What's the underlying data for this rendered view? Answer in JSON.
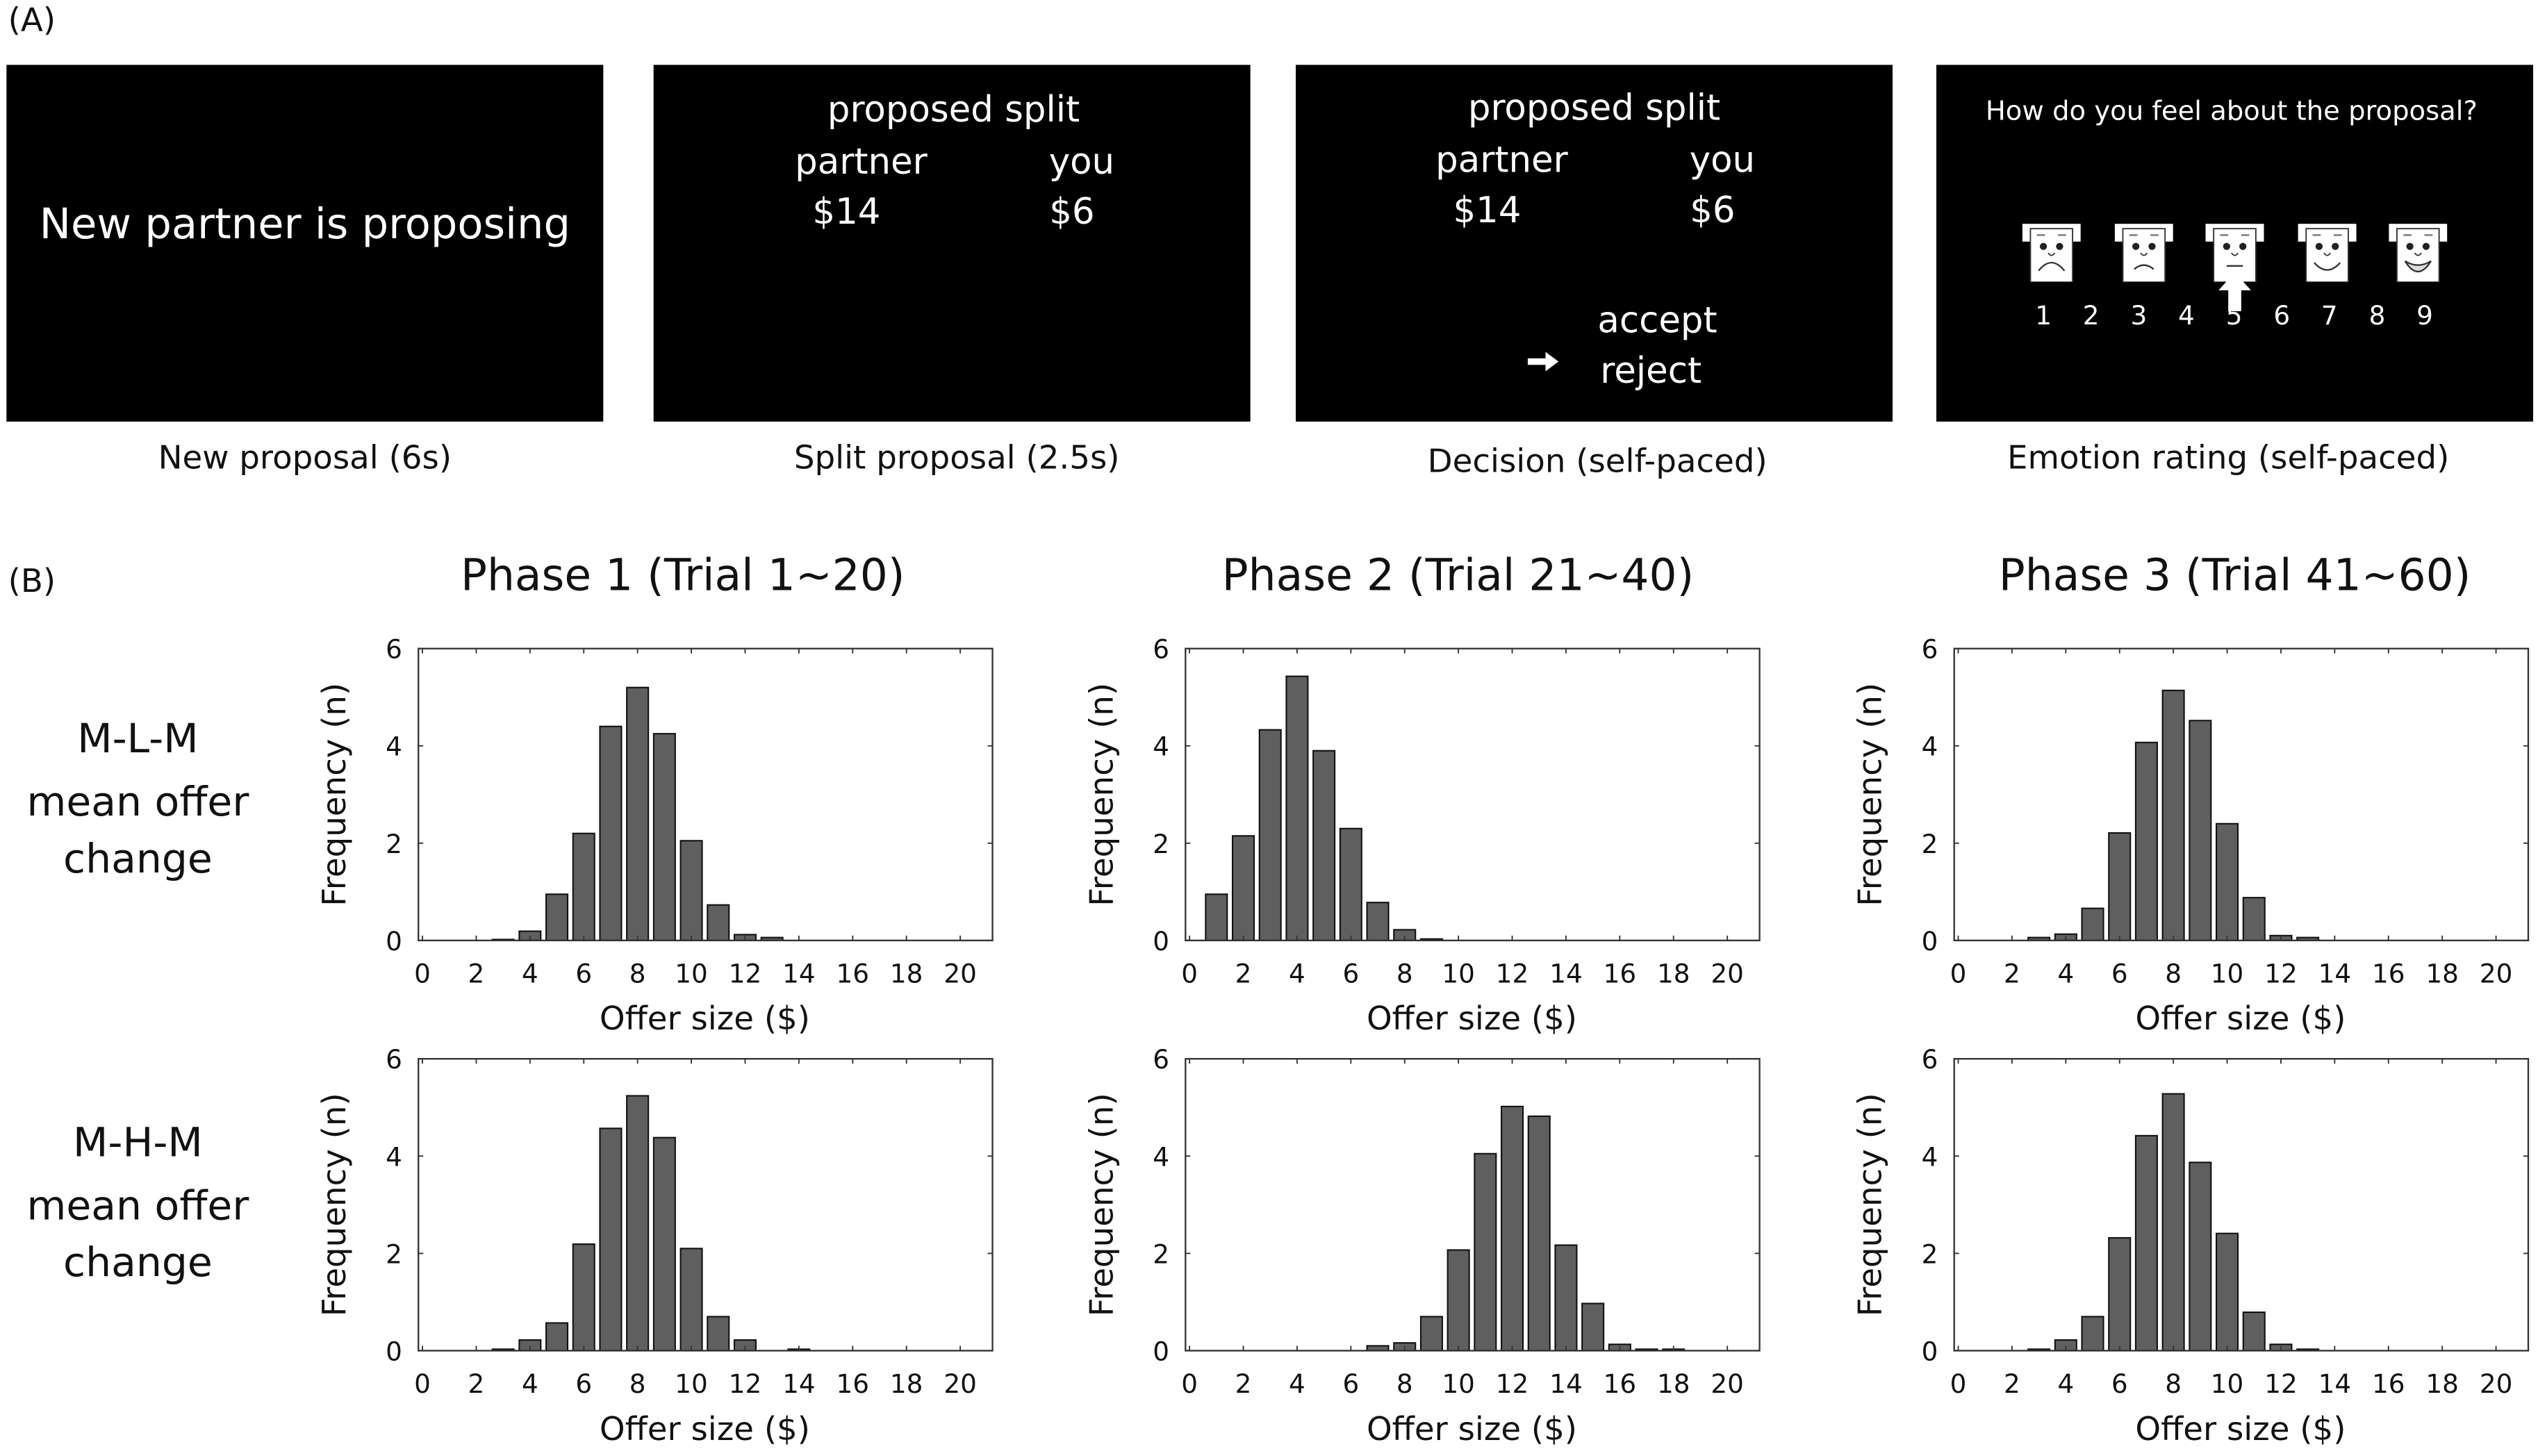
{
  "panel_a": {
    "label": "(A)",
    "screens": [
      {
        "caption": "New proposal (6s)",
        "text": "New partner is proposing"
      },
      {
        "caption": "Split proposal (2.5s)",
        "heading": "proposed split",
        "partner_label": "partner",
        "you_label": "you",
        "partner_amount": "$14",
        "you_amount": "$6"
      },
      {
        "caption": "Decision (self-paced)",
        "heading": "proposed split",
        "partner_label": "partner",
        "you_label": "you",
        "partner_amount": "$14",
        "you_amount": "$6",
        "option_accept": "accept",
        "option_reject": "reject",
        "cursor_icon": "right-arrow"
      },
      {
        "caption": "Emotion rating (self-paced)",
        "question": "How do you feel about the proposal?",
        "scale": [
          "1",
          "2",
          "3",
          "4",
          "5",
          "6",
          "7",
          "8",
          "9"
        ],
        "selected": "5",
        "faces": [
          "very-sad",
          "sad",
          "neutral",
          "happy",
          "very-happy"
        ]
      }
    ]
  },
  "panel_b": {
    "label": "(B)",
    "phases": [
      "Phase 1 (Trial 1~20)",
      "Phase 2 (Trial 21~40)",
      "Phase 3 (Trial 41~60)"
    ],
    "conditions": [
      {
        "name": "M-L-M",
        "line2": "mean offer",
        "line3": "change"
      },
      {
        "name": "M-H-M",
        "line2": "mean offer",
        "line3": "change"
      }
    ]
  },
  "chart_data": [
    {
      "type": "bar",
      "phase": "Phase 1 (Trial 1~20)",
      "condition": "M-L-M",
      "xlabel": "Offer size ($)",
      "ylabel": "Frequency (n)",
      "xlim": [
        -0.15,
        21.2
      ],
      "ylim": [
        0,
        6
      ],
      "xticks": [
        0,
        2,
        4,
        6,
        8,
        10,
        12,
        14,
        16,
        18,
        20
      ],
      "yticks": [
        0,
        2,
        4,
        6
      ],
      "x": [
        3,
        4,
        5,
        6,
        7,
        8,
        9,
        10,
        11,
        12,
        13
      ],
      "values": [
        0.02,
        0.19,
        0.95,
        2.2,
        4.4,
        5.2,
        4.25,
        2.05,
        0.73,
        0.12,
        0.06
      ]
    },
    {
      "type": "bar",
      "phase": "Phase 2 (Trial 21~40)",
      "condition": "M-L-M",
      "xlabel": "Offer size ($)",
      "ylabel": "Frequency (n)",
      "xlim": [
        -0.15,
        21.2
      ],
      "ylim": [
        0,
        6
      ],
      "xticks": [
        0,
        2,
        4,
        6,
        8,
        10,
        12,
        14,
        16,
        18,
        20
      ],
      "yticks": [
        0,
        2,
        4,
        6
      ],
      "x": [
        1,
        2,
        3,
        4,
        5,
        6,
        7,
        8,
        9
      ],
      "values": [
        0.95,
        2.15,
        4.33,
        5.43,
        3.9,
        2.3,
        0.78,
        0.22,
        0.03
      ]
    },
    {
      "type": "bar",
      "phase": "Phase 3 (Trial 41~60)",
      "condition": "M-L-M",
      "xlabel": "Offer size ($)",
      "ylabel": "Frequency (n)",
      "xlim": [
        -0.15,
        21.2
      ],
      "ylim": [
        0,
        6
      ],
      "xticks": [
        0,
        2,
        4,
        6,
        8,
        10,
        12,
        14,
        16,
        18,
        20
      ],
      "yticks": [
        0,
        2,
        4,
        6
      ],
      "x": [
        3,
        4,
        5,
        6,
        7,
        8,
        9,
        10,
        11,
        12,
        13
      ],
      "values": [
        0.06,
        0.13,
        0.66,
        2.21,
        4.07,
        5.14,
        4.52,
        2.4,
        0.88,
        0.1,
        0.06
      ]
    },
    {
      "type": "bar",
      "phase": "Phase 1 (Trial 1~20)",
      "condition": "M-H-M",
      "xlabel": "Offer size ($)",
      "ylabel": "Frequency (n)",
      "xlim": [
        -0.15,
        21.2
      ],
      "ylim": [
        0,
        6
      ],
      "xticks": [
        0,
        2,
        4,
        6,
        8,
        10,
        12,
        14,
        16,
        18,
        20
      ],
      "yticks": [
        0,
        2,
        4,
        6
      ],
      "x": [
        3,
        4,
        5,
        6,
        7,
        8,
        9,
        10,
        11,
        12,
        14
      ],
      "values": [
        0.03,
        0.22,
        0.57,
        2.19,
        4.57,
        5.24,
        4.38,
        2.1,
        0.7,
        0.22,
        0.03
      ]
    },
    {
      "type": "bar",
      "phase": "Phase 2 (Trial 21~40)",
      "condition": "M-H-M",
      "xlabel": "Offer size ($)",
      "ylabel": "Frequency (n)",
      "xlim": [
        -0.15,
        21.2
      ],
      "ylim": [
        0,
        6
      ],
      "xticks": [
        0,
        2,
        4,
        6,
        8,
        10,
        12,
        14,
        16,
        18,
        20
      ],
      "yticks": [
        0,
        2,
        4,
        6
      ],
      "x": [
        7,
        8,
        9,
        10,
        11,
        12,
        13,
        14,
        15,
        16,
        17,
        18
      ],
      "values": [
        0.1,
        0.16,
        0.7,
        2.07,
        4.05,
        5.02,
        4.82,
        2.17,
        0.97,
        0.13,
        0.03,
        0.03
      ]
    },
    {
      "type": "bar",
      "phase": "Phase 3 (Trial 41~60)",
      "condition": "M-H-M",
      "xlabel": "Offer size ($)",
      "ylabel": "Frequency (n)",
      "xlim": [
        -0.15,
        21.2
      ],
      "ylim": [
        0,
        6
      ],
      "xticks": [
        0,
        2,
        4,
        6,
        8,
        10,
        12,
        14,
        16,
        18,
        20
      ],
      "yticks": [
        0,
        2,
        4,
        6
      ],
      "x": [
        3,
        4,
        5,
        6,
        7,
        8,
        9,
        10,
        11,
        12,
        13
      ],
      "values": [
        0.03,
        0.22,
        0.7,
        2.32,
        4.42,
        5.28,
        3.87,
        2.41,
        0.79,
        0.13,
        0.03
      ]
    }
  ]
}
